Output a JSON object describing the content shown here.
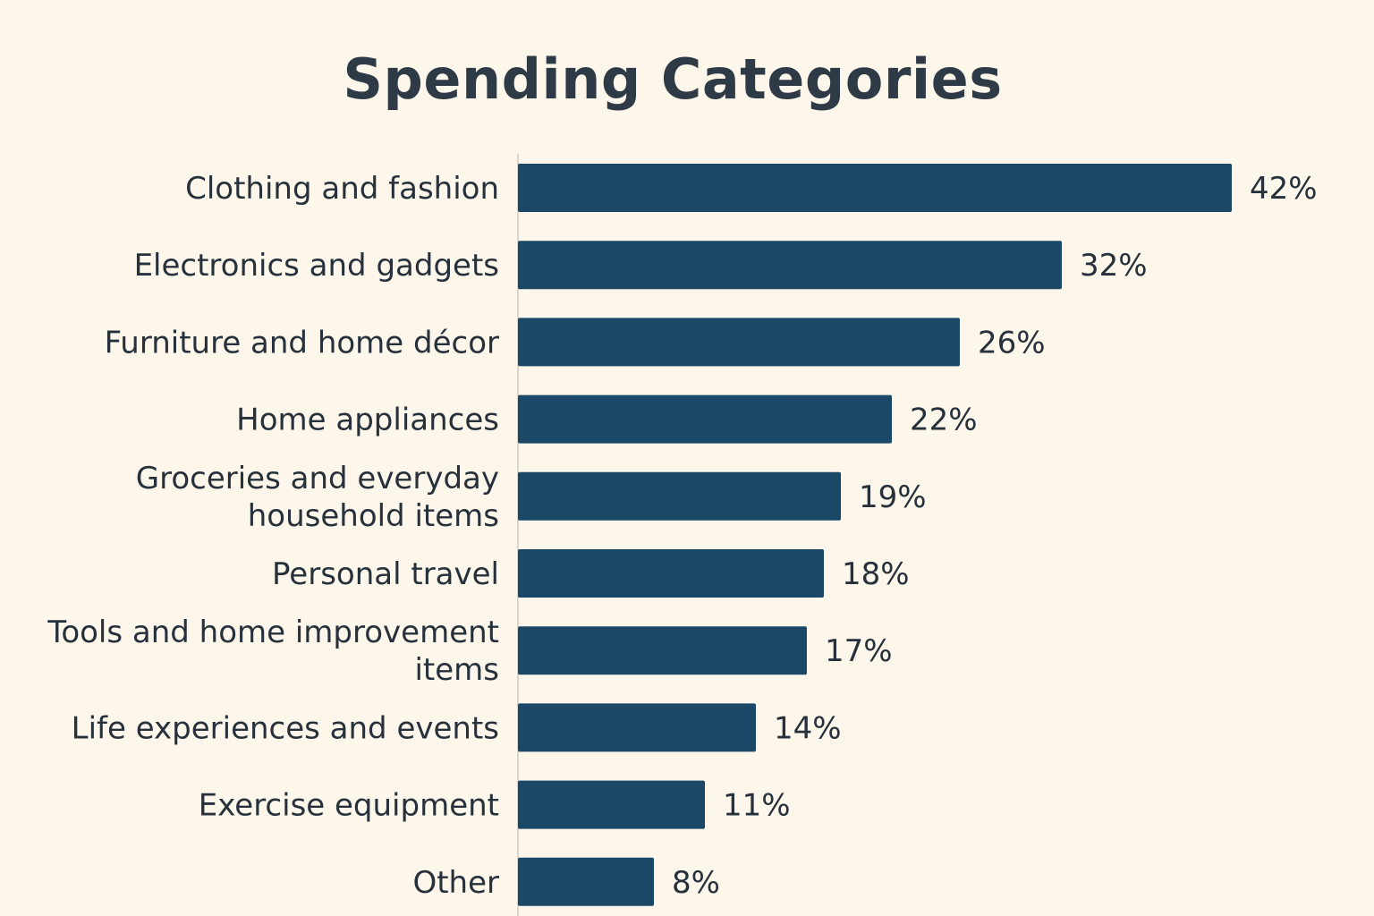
{
  "chart_data": {
    "type": "bar",
    "orientation": "horizontal",
    "title": "Spending Categories",
    "xlabel": "",
    "ylabel": "",
    "categories": [
      "Clothing and fashion",
      "Electronics and gadgets",
      "Furniture and home décor",
      "Home appliances",
      "Groceries and everyday household items",
      "Personal travel",
      "Tools and home improvement items",
      "Life experiences and events",
      "Exercise equipment",
      "Other"
    ],
    "category_lines": [
      [
        "Clothing and fashion"
      ],
      [
        "Electronics and gadgets"
      ],
      [
        "Furniture and home décor"
      ],
      [
        "Home appliances"
      ],
      [
        "Groceries and everyday",
        "household items"
      ],
      [
        "Personal travel"
      ],
      [
        "Tools and home improvement",
        "items"
      ],
      [
        "Life experiences and events"
      ],
      [
        "Exercise equipment"
      ],
      [
        "Other"
      ]
    ],
    "values": [
      42,
      32,
      26,
      22,
      19,
      18,
      17,
      14,
      11,
      8
    ],
    "value_labels": [
      "42%",
      "32%",
      "26%",
      "22%",
      "19%",
      "18%",
      "17%",
      "14%",
      "11%",
      "8%"
    ],
    "value_unit": "%",
    "grid": false,
    "legend": "none",
    "bar_color": "#1b4866",
    "axis_color": "#d9d4cc"
  }
}
